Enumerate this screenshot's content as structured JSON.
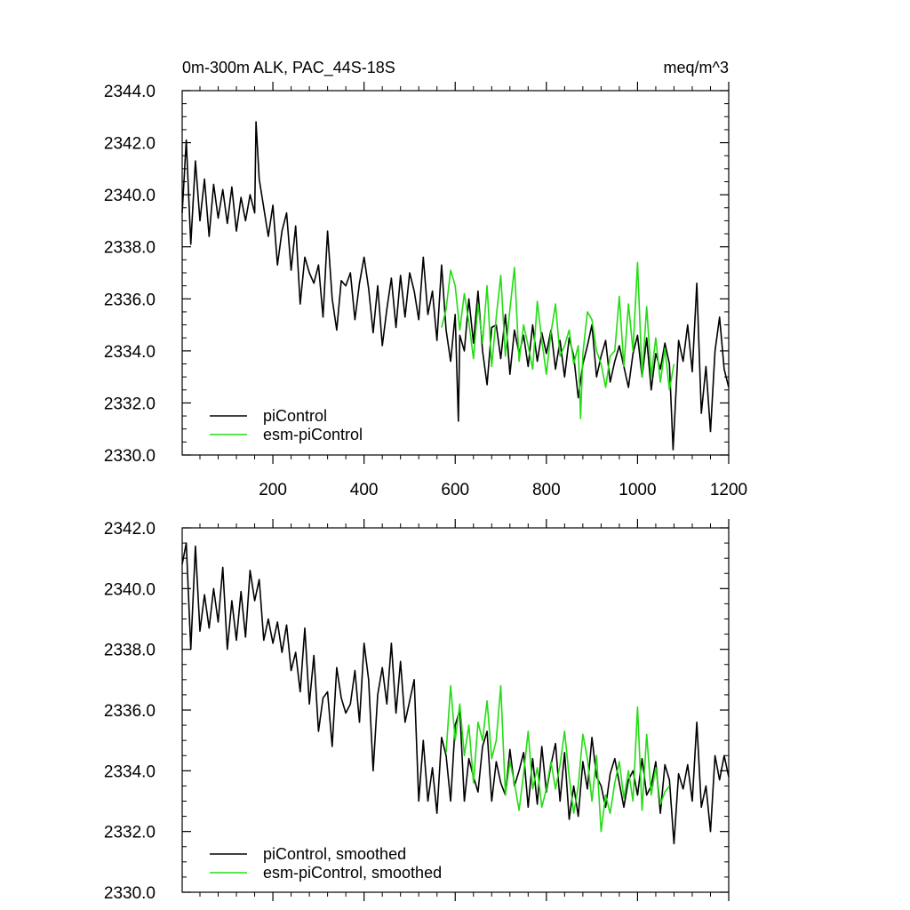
{
  "chart_data": [
    {
      "type": "line",
      "title_left": "0m-300m ALK, PAC_44S-18S",
      "title_right": "meq/m^3",
      "xlabel": "",
      "ylabel": "",
      "xlim": [
        1,
        1200
      ],
      "ylim": [
        2330.0,
        2344.0
      ],
      "x_ticks": [
        200,
        400,
        600,
        800,
        1000,
        1200
      ],
      "x_tick_labels": [
        "200",
        "400",
        "600",
        "800",
        "1000",
        "1200"
      ],
      "y_ticks": [
        2330.0,
        2332.0,
        2334.0,
        2336.0,
        2338.0,
        2340.0,
        2342.0,
        2344.0
      ],
      "y_tick_labels": [
        "2330.0",
        "2332.0",
        "2334.0",
        "2336.0",
        "2338.0",
        "2340.0",
        "2342.0",
        "2344.0"
      ],
      "legend_position": "bottom-left",
      "series": [
        {
          "name": "piControl",
          "color": "#000000",
          "x": [
            1,
            10,
            20,
            30,
            40,
            50,
            60,
            70,
            80,
            90,
            100,
            110,
            120,
            130,
            140,
            150,
            160,
            163,
            170,
            180,
            190,
            200,
            210,
            220,
            230,
            240,
            250,
            260,
            270,
            280,
            290,
            300,
            310,
            320,
            330,
            340,
            350,
            360,
            370,
            380,
            390,
            400,
            410,
            420,
            430,
            440,
            450,
            460,
            470,
            480,
            490,
            500,
            510,
            520,
            530,
            540,
            550,
            560,
            570,
            580,
            590,
            600,
            607,
            610,
            620,
            630,
            640,
            650,
            660,
            670,
            680,
            690,
            700,
            710,
            720,
            730,
            740,
            750,
            760,
            770,
            780,
            790,
            800,
            810,
            820,
            830,
            840,
            850,
            860,
            870,
            880,
            890,
            900,
            910,
            920,
            930,
            940,
            950,
            960,
            970,
            980,
            990,
            1000,
            1010,
            1020,
            1030,
            1040,
            1050,
            1060,
            1070,
            1078,
            1090,
            1100,
            1110,
            1120,
            1130,
            1140,
            1150,
            1160,
            1170,
            1180,
            1190,
            1200
          ],
          "y": [
            2339.3,
            2342.1,
            2338.1,
            2341.3,
            2339.0,
            2340.6,
            2338.4,
            2340.4,
            2339.1,
            2340.2,
            2338.9,
            2340.3,
            2338.6,
            2339.9,
            2339.0,
            2340.0,
            2339.3,
            2342.8,
            2340.6,
            2339.5,
            2338.4,
            2339.6,
            2337.3,
            2338.6,
            2339.3,
            2337.1,
            2338.8,
            2335.8,
            2337.6,
            2337.0,
            2336.6,
            2337.3,
            2335.3,
            2338.6,
            2336.0,
            2334.8,
            2336.7,
            2336.5,
            2337.0,
            2335.2,
            2336.6,
            2337.6,
            2336.4,
            2334.7,
            2336.5,
            2334.2,
            2335.6,
            2336.8,
            2334.9,
            2336.9,
            2335.3,
            2337.0,
            2336.3,
            2335.2,
            2337.6,
            2335.4,
            2336.3,
            2334.4,
            2337.3,
            2334.8,
            2333.6,
            2335.4,
            2331.3,
            2334.6,
            2334.0,
            2336.0,
            2334.3,
            2336.3,
            2334.0,
            2332.7,
            2334.9,
            2335.0,
            2333.7,
            2335.4,
            2333.1,
            2334.8,
            2333.9,
            2334.6,
            2333.4,
            2335.0,
            2333.6,
            2334.7,
            2333.9,
            2334.8,
            2333.3,
            2334.4,
            2333.0,
            2334.5,
            2333.8,
            2332.2,
            2333.5,
            2334.2,
            2335.0,
            2333.0,
            2333.8,
            2334.4,
            2332.8,
            2333.6,
            2334.2,
            2333.4,
            2332.6,
            2333.9,
            2334.6,
            2333.0,
            2334.5,
            2332.5,
            2333.9,
            2333.3,
            2334.3,
            2333.5,
            2330.2,
            2334.4,
            2333.6,
            2335.0,
            2333.2,
            2336.6,
            2331.6,
            2333.4,
            2330.9,
            2334.0,
            2335.3,
            2333.3,
            2332.6
          ]
        },
        {
          "name": "esm-piControl",
          "color": "#22dd11",
          "x": [
            570,
            580,
            590,
            600,
            610,
            620,
            630,
            640,
            650,
            660,
            670,
            680,
            690,
            700,
            710,
            720,
            730,
            740,
            750,
            760,
            770,
            780,
            790,
            800,
            810,
            820,
            830,
            840,
            850,
            860,
            870,
            875,
            880,
            890,
            900,
            910,
            920,
            930,
            940,
            950,
            960,
            970,
            980,
            990,
            1000,
            1010,
            1020,
            1030,
            1040,
            1050,
            1060,
            1070,
            1080
          ],
          "y": [
            2334.9,
            2335.6,
            2337.1,
            2336.5,
            2334.8,
            2336.2,
            2335.1,
            2333.7,
            2335.8,
            2334.3,
            2336.5,
            2333.4,
            2335.3,
            2336.9,
            2333.8,
            2335.6,
            2337.2,
            2333.6,
            2335.0,
            2334.2,
            2333.3,
            2335.9,
            2334.4,
            2333.1,
            2334.7,
            2335.8,
            2333.8,
            2334.2,
            2334.8,
            2333.5,
            2334.2,
            2331.4,
            2333.9,
            2335.5,
            2335.2,
            2334.0,
            2333.5,
            2332.6,
            2333.8,
            2334.0,
            2336.1,
            2333.4,
            2335.8,
            2334.0,
            2337.4,
            2333.0,
            2335.7,
            2333.0,
            2334.5,
            2332.8,
            2334.1,
            2332.5,
            2333.5
          ]
        }
      ]
    },
    {
      "type": "line",
      "title_left": "",
      "title_right": "",
      "xlabel": "",
      "ylabel": "",
      "xlim": [
        1,
        1200
      ],
      "ylim": [
        2330.0,
        2342.0
      ],
      "x_ticks": [
        200,
        400,
        600,
        800,
        1000,
        1200
      ],
      "x_tick_labels": [],
      "y_ticks": [
        2330.0,
        2332.0,
        2334.0,
        2336.0,
        2338.0,
        2340.0,
        2342.0
      ],
      "y_tick_labels": [
        "2330.0",
        "2332.0",
        "2334.0",
        "2336.0",
        "2338.0",
        "2340.0",
        "2342.0"
      ],
      "legend_position": "bottom-left",
      "series": [
        {
          "name": "piControl, smoothed",
          "color": "#000000",
          "x": [
            1,
            10,
            20,
            30,
            40,
            50,
            60,
            70,
            80,
            90,
            100,
            110,
            120,
            130,
            140,
            150,
            160,
            170,
            180,
            190,
            200,
            210,
            220,
            230,
            240,
            250,
            260,
            270,
            280,
            290,
            300,
            310,
            320,
            330,
            340,
            350,
            360,
            370,
            380,
            390,
            400,
            410,
            420,
            430,
            440,
            450,
            460,
            470,
            480,
            490,
            500,
            510,
            520,
            530,
            540,
            550,
            560,
            570,
            580,
            590,
            600,
            610,
            620,
            630,
            640,
            650,
            660,
            670,
            680,
            690,
            700,
            710,
            720,
            730,
            740,
            750,
            760,
            770,
            780,
            790,
            800,
            810,
            820,
            830,
            840,
            850,
            860,
            870,
            880,
            890,
            900,
            910,
            920,
            930,
            940,
            950,
            960,
            970,
            980,
            990,
            1000,
            1010,
            1020,
            1030,
            1040,
            1050,
            1060,
            1070,
            1080,
            1090,
            1100,
            1110,
            1120,
            1130,
            1140,
            1150,
            1160,
            1170,
            1180,
            1190,
            1200
          ],
          "y": [
            2340.8,
            2341.5,
            2338.0,
            2341.4,
            2338.6,
            2339.8,
            2338.7,
            2340.0,
            2338.9,
            2340.7,
            2338.0,
            2339.6,
            2338.3,
            2339.9,
            2338.4,
            2340.6,
            2339.6,
            2340.3,
            2338.3,
            2339.0,
            2338.2,
            2338.9,
            2337.9,
            2338.8,
            2337.3,
            2337.9,
            2336.6,
            2338.7,
            2336.2,
            2337.8,
            2335.3,
            2336.4,
            2336.6,
            2334.8,
            2337.4,
            2336.4,
            2335.9,
            2336.2,
            2337.3,
            2335.6,
            2338.2,
            2337.0,
            2334.0,
            2336.5,
            2337.4,
            2336.2,
            2338.2,
            2335.9,
            2337.6,
            2335.6,
            2336.3,
            2337.0,
            2333.0,
            2335.0,
            2333.0,
            2334.1,
            2332.6,
            2335.1,
            2334.5,
            2333.0,
            2335.5,
            2336.0,
            2333.0,
            2334.4,
            2333.8,
            2333.3,
            2334.8,
            2335.3,
            2333.0,
            2334.3,
            2333.6,
            2333.2,
            2334.7,
            2333.5,
            2334.0,
            2334.6,
            2332.8,
            2334.4,
            2332.9,
            2334.8,
            2333.3,
            2334.2,
            2334.9,
            2333.0,
            2334.6,
            2332.4,
            2333.5,
            2332.5,
            2334.3,
            2333.4,
            2335.1,
            2333.8,
            2333.5,
            2332.8,
            2333.9,
            2334.4,
            2333.6,
            2332.8,
            2333.7,
            2334.0,
            2333.2,
            2334.4,
            2333.2,
            2333.5,
            2334.3,
            2332.6,
            2334.2,
            2333.7,
            2331.6,
            2333.9,
            2333.4,
            2334.2,
            2333.0,
            2335.6,
            2332.8,
            2333.5,
            2332.0,
            2334.5,
            2333.7,
            2334.5,
            2333.8
          ]
        },
        {
          "name": "esm-piControl, smoothed",
          "color": "#22dd11",
          "x": [
            580,
            590,
            600,
            610,
            620,
            630,
            640,
            650,
            660,
            670,
            680,
            690,
            700,
            710,
            720,
            730,
            740,
            750,
            760,
            770,
            780,
            790,
            800,
            810,
            820,
            830,
            840,
            850,
            860,
            870,
            880,
            890,
            900,
            910,
            920,
            930,
            940,
            950,
            960,
            970,
            980,
            990,
            1000,
            1010,
            1020,
            1030,
            1040,
            1050,
            1060,
            1070
          ],
          "y": [
            2334.6,
            2336.8,
            2335.0,
            2336.2,
            2334.5,
            2335.5,
            2333.6,
            2335.6,
            2335.0,
            2336.3,
            2334.4,
            2335.0,
            2336.8,
            2333.2,
            2334.3,
            2333.6,
            2332.7,
            2333.9,
            2335.3,
            2333.4,
            2334.1,
            2332.8,
            2333.4,
            2334.3,
            2333.4,
            2334.2,
            2335.3,
            2333.8,
            2332.6,
            2333.5,
            2335.2,
            2334.4,
            2333.0,
            2334.5,
            2332.0,
            2333.2,
            2332.6,
            2333.6,
            2334.3,
            2333.1,
            2334.0,
            2333.0,
            2336.1,
            2332.7,
            2335.2,
            2333.2,
            2334.1,
            2332.9,
            2333.3,
            2333.5
          ]
        }
      ]
    }
  ]
}
